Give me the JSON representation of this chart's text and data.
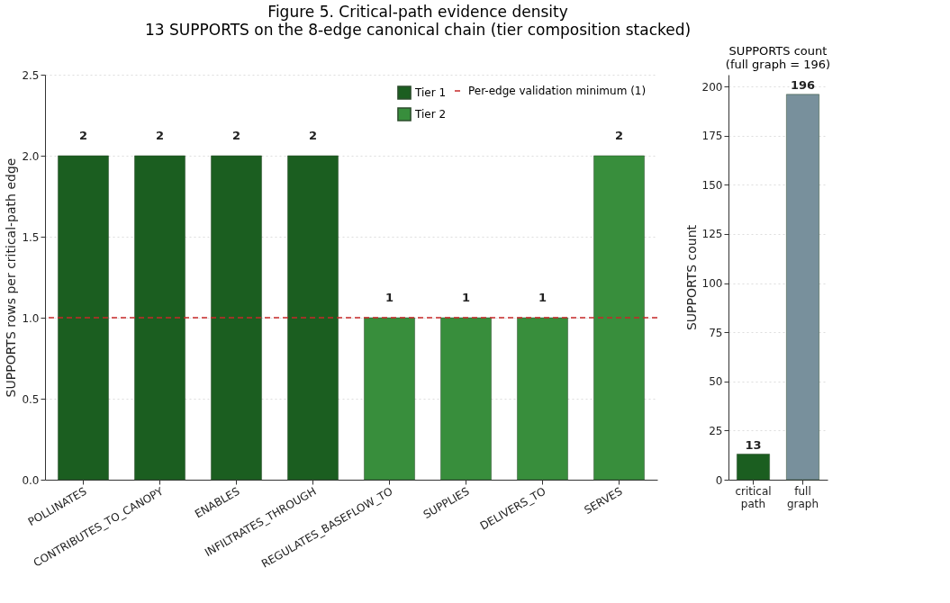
{
  "chart_data": [
    {
      "type": "bar",
      "title": "Figure 5. Critical-path evidence density",
      "subtitle": "13 SUPPORTS on the 8-edge canonical chain (tier composition stacked)",
      "ylabel": "SUPPORTS rows per critical-path edge",
      "categories": [
        "POLLINATES",
        "CONTRIBUTES_TO_CANOPY",
        "ENABLES",
        "INFILTRATES_THROUGH",
        "REGULATES_BASEFLOW_TO",
        "SUPPLIES",
        "DELIVERS_TO",
        "SERVES"
      ],
      "stacked": true,
      "series": [
        {
          "name": "Tier 1",
          "color": "#1b5e20",
          "values": [
            2,
            2,
            2,
            2,
            null,
            null,
            null,
            null
          ]
        },
        {
          "name": "Tier 2",
          "color": "#388e3c",
          "values": [
            null,
            null,
            null,
            null,
            1,
            1,
            1,
            2
          ]
        }
      ],
      "totals": [
        "2",
        "2",
        "2",
        "2",
        "1",
        "1",
        "1",
        "2"
      ],
      "ylim": [
        0,
        2.5
      ],
      "yticks": [
        {
          "value": 0,
          "label": "0.0"
        },
        {
          "value": 0.5,
          "label": "0.5"
        },
        {
          "value": 1,
          "label": "1.0"
        },
        {
          "value": 1.5,
          "label": "1.5"
        },
        {
          "value": 2,
          "label": "2.0"
        },
        {
          "value": 2.5,
          "label": "2.5"
        }
      ],
      "ref_lines": [
        {
          "axis": "y",
          "value": 1,
          "label": "Per-edge validation minimum (1)",
          "color": "#c62828",
          "line_style": "dashed"
        }
      ],
      "grid": "y",
      "legend": "top right"
    },
    {
      "type": "bar",
      "title": "SUPPORTS count\n(full graph = 196)",
      "ylabel": "SUPPORTS count",
      "categories": [
        "critical path",
        "full graph"
      ],
      "values": [
        13,
        196
      ],
      "colors": [
        "#1b5e20",
        "#78909c"
      ],
      "data_labels": true,
      "ylim": [
        0,
        206
      ],
      "yticks": [
        0,
        25,
        50,
        75,
        100,
        125,
        150,
        175,
        200
      ],
      "grid": "y"
    }
  ]
}
